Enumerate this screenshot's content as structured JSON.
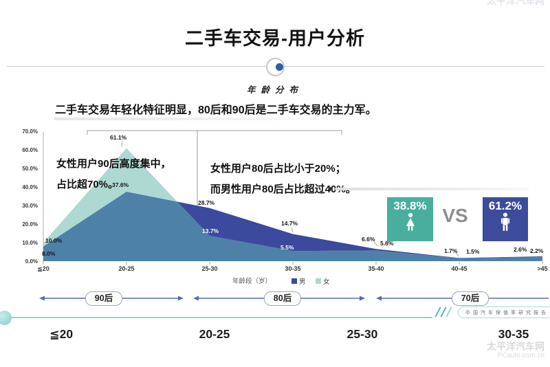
{
  "page": {
    "title": "二手车交易-用户分析",
    "headline": "二手车交易年轻化特征明显，80后和90后是二手车交易的主力军。"
  },
  "chart_data": {
    "type": "area",
    "title": "年龄分布",
    "categories": [
      "≦20",
      "20-25",
      "25-30",
      "30-35",
      "35-40",
      "40-45",
      ">45"
    ],
    "series": [
      {
        "name": "男",
        "color": "#3b4a9d",
        "values": [
          8.0,
          37.6,
          28.7,
          14.7,
          6.6,
          1.7,
          2.6
        ]
      },
      {
        "name": "女",
        "color": "#aed8d2",
        "values": [
          10.0,
          61.1,
          13.7,
          5.5,
          5.8,
          1.5,
          2.2
        ]
      }
    ],
    "overlap_color": "#4e81a8",
    "xlabel": "年龄段（岁）",
    "ylabel": "",
    "ylim": [
      0,
      70
    ],
    "yticks": [
      "0.0%",
      "10.0%",
      "20.0%",
      "30.0%",
      "40.0%",
      "50.0%",
      "60.0%",
      "70.0%"
    ],
    "grid": false,
    "data_labels": true,
    "legend_position": "bottom"
  },
  "annotations": {
    "left": [
      "女性用户90后高度集中，",
      "占比超70%。"
    ],
    "right": [
      "女性用户80后占比小于20%；",
      "而男性用户80后占比超过40%。"
    ]
  },
  "vs": {
    "female_pct": "38.8%",
    "vs_label": "VS",
    "male_pct": "61.2%",
    "female_color": "#49ae9e",
    "male_color": "#3c4b9b"
  },
  "generation_arrows": [
    {
      "label": "90后"
    },
    {
      "label": "80后"
    },
    {
      "label": "70后"
    }
  ],
  "bottom_labels": [
    "≦20",
    "20-25",
    "25-30",
    "30-35"
  ],
  "footer_note": "中国汽车保值率研究报告",
  "watermark": {
    "line1": "太平洋汽车网",
    "line2": "PCauto.com.cn"
  },
  "accent_colors": {
    "arrow": "#5b68b3",
    "footer_teal": "#8ed4cd"
  }
}
